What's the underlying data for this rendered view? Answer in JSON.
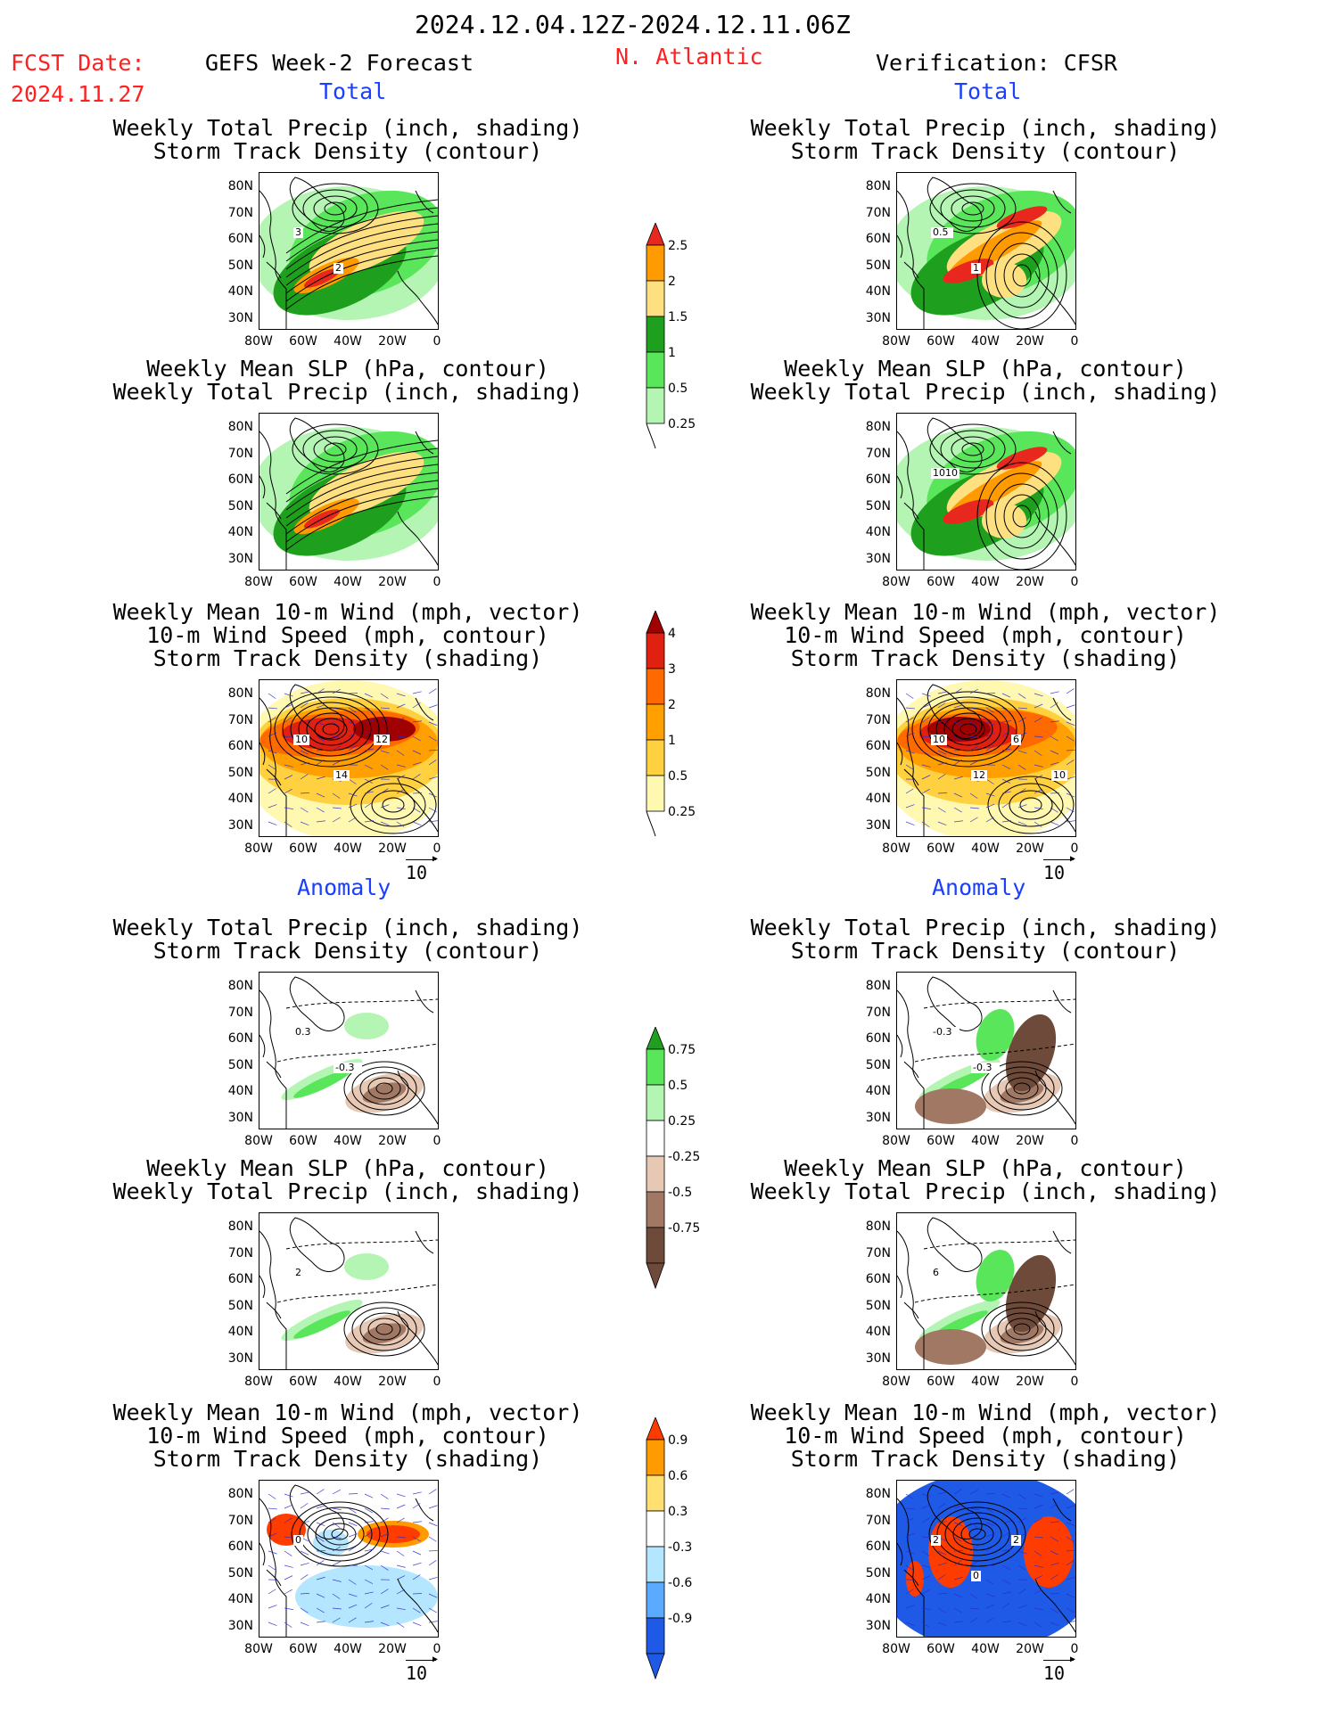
{
  "header": {
    "period": "2024.12.04.12Z-2024.12.11.06Z",
    "fcst_label": "FCST Date:",
    "fcst_date": "2024.11.27",
    "forecast_title": "GEFS Week-2 Forecast",
    "region": "N. Atlantic",
    "verification": "Verification: CFSR"
  },
  "sections": {
    "total": "Total",
    "anomaly": "Anomaly"
  },
  "titles": {
    "precip_track": [
      "Weekly Total Precip (inch, shading)",
      "Storm Track Density (contour)"
    ],
    "slp_precip": [
      "Weekly Mean SLP (hPa, contour)",
      "Weekly Total Precip (inch, shading)"
    ],
    "wind_track": [
      "Weekly Mean 10-m Wind (mph, vector)",
      "10-m Wind Speed (mph, contour)",
      "Storm Track Density (shading)"
    ]
  },
  "axes": {
    "lat_labels": [
      "80N",
      "70N",
      "60N",
      "50N",
      "40N",
      "30N"
    ],
    "lon_labels": [
      "80W",
      "60W",
      "40W",
      "20W",
      "0"
    ]
  },
  "vector_ref": "10",
  "colorbars": {
    "precip_total": {
      "labels": [
        "2.5",
        "2",
        "1.5",
        "1",
        "0.5",
        "0.25"
      ],
      "colors": [
        "#e8281e",
        "#ff9a00",
        "#ffe080",
        "#1ea01e",
        "#5ae65a",
        "#b4f5b4"
      ]
    },
    "track_total": {
      "labels": [
        "4",
        "3",
        "2",
        "1",
        "0.5",
        "0.25"
      ],
      "colors": [
        "#a00000",
        "#e02010",
        "#ff6a00",
        "#ffa000",
        "#ffd040",
        "#fff8b0"
      ]
    },
    "precip_anom": {
      "labels": [
        "0.75",
        "0.5",
        "0.25",
        "-0.25",
        "-0.5",
        "-0.75"
      ],
      "colors": [
        "#1ea01e",
        "#5ae65a",
        "#b4f5b4",
        "#ffffff",
        "#e6c8b4",
        "#a07864",
        "#6e4a3a"
      ]
    },
    "track_anom": {
      "labels": [
        "0.9",
        "0.6",
        "0.3",
        "-0.3",
        "-0.6",
        "-0.9"
      ],
      "colors": [
        "#ff3c00",
        "#ff9a00",
        "#ffe070",
        "#ffffff",
        "#b4e6ff",
        "#5aaaff",
        "#1e5ae6"
      ]
    }
  },
  "contour_labels": {
    "l1": "3",
    "l2": "2",
    "r1a": "0.5",
    "r1b": "1",
    "r2": "1010",
    "l3a": "10",
    "l3b": "14",
    "l3c": "12",
    "r3a": "10",
    "r3b": "12",
    "r3c": "6",
    "r3d": "10",
    "l4a": "0.3",
    "l4b": "-0.3",
    "r4a": "-0.3",
    "r4b": "-0.3",
    "l5": "2",
    "r5": "6",
    "l6": "0",
    "r6a": "2",
    "r6b": "0",
    "r6c": "2"
  }
}
